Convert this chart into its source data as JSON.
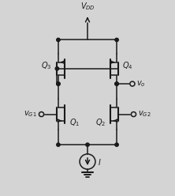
{
  "bg_color": "#d4d4d4",
  "line_color": "#1a1a1a",
  "text_color": "#1a1a1a",
  "figsize": [
    2.22,
    2.48
  ],
  "dpi": 100,
  "xlim": [
    0,
    10
  ],
  "ylim": [
    0,
    11
  ],
  "vdd_x": 5.0,
  "vdd_y": 10.5,
  "q1x": 3.7,
  "q1y": 4.8,
  "q2x": 6.3,
  "q2y": 4.8,
  "q3x": 3.7,
  "q3y": 7.5,
  "q4x": 6.3,
  "q4y": 7.5,
  "cs_x": 5.0,
  "cs_y": 2.0,
  "cs_r": 0.45,
  "sy": 3.0,
  "rail_y": 9.2
}
